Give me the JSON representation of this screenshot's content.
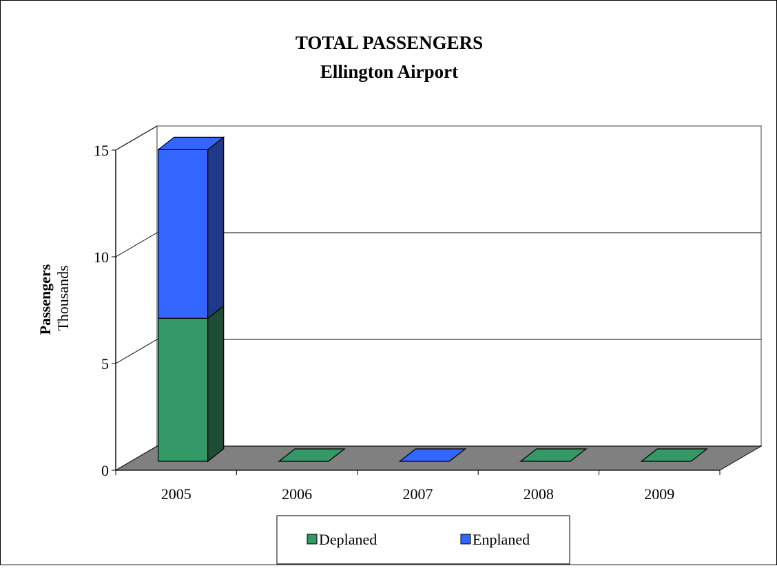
{
  "chart_data": {
    "type": "bar",
    "stacked": true,
    "three_d": true,
    "title": "TOTAL PASSENGERS",
    "subtitle": "Ellington Airport",
    "ylabel": "Passengers",
    "ylabel_unit": "Thousands",
    "xlabel": "",
    "categories": [
      "2005",
      "2006",
      "2007",
      "2008",
      "2009"
    ],
    "series": [
      {
        "name": "Deplaned",
        "values": [
          6.7,
          0,
          0,
          0,
          0
        ],
        "color": "#339966",
        "side_color": "#1e4d36"
      },
      {
        "name": "Enplaned",
        "values": [
          7.9,
          0,
          0,
          0,
          0
        ],
        "color": "#3366ff",
        "side_color": "#1f3a8a"
      }
    ],
    "empty_cap_series": [
      "Deplaned",
      "Deplaned",
      "Enplaned",
      "Deplaned",
      "Deplaned"
    ],
    "ylim": [
      0,
      15
    ],
    "yticks": [
      "0",
      "5",
      "10",
      "15"
    ],
    "ytick_values": [
      0,
      5,
      10,
      15
    ],
    "gridlines": [
      5,
      10
    ],
    "legend_position": "bottom",
    "floor_color": "#808080",
    "wall_color": "#ffffff"
  }
}
